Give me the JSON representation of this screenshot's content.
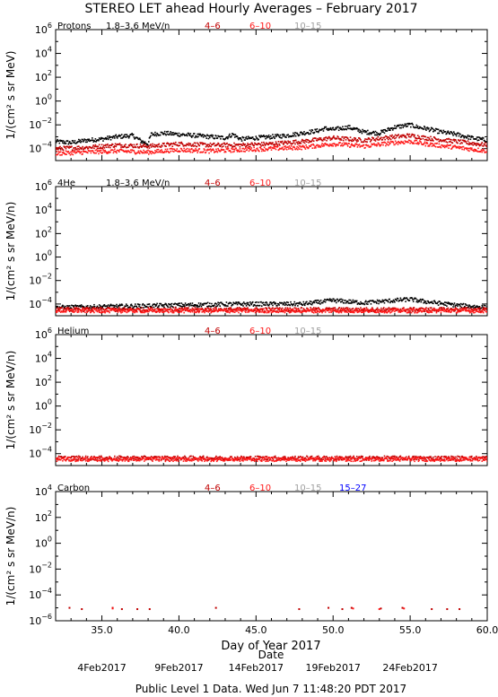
{
  "page": {
    "title": "STEREO LET ahead Hourly Averages – February 2017",
    "footer": "Public Level 1 Data. Wed Jun  7 11:48:20 PDT 2017",
    "xlabel": "Day of Year 2017",
    "date_axis_label": "Date",
    "date_ticks": [
      {
        "label": "4Feb2017",
        "day": 35.0
      },
      {
        "label": "9Feb2017",
        "day": 40.0
      },
      {
        "label": "14Feb2017",
        "day": 45.0
      },
      {
        "label": "19Feb2017",
        "day": 50.0
      },
      {
        "label": "24Feb2017",
        "day": 55.0
      }
    ]
  },
  "colors": {
    "black": "#000000",
    "dark_red": "#c00000",
    "red": "#ff1a1a",
    "gray": "#a0a0a0",
    "blue": "#0000ff"
  },
  "chart_data": [
    {
      "type": "scatter",
      "name": "Protons",
      "energy_label": "1.8–3.6 MeV/n",
      "ylabel": "1/(cm² s sr MeV)",
      "yscale": "log",
      "xlim": [
        32.0,
        60.0
      ],
      "ylim_exp": [
        -5,
        6
      ],
      "x_ticks": [
        "35.0",
        "40.0",
        "45.0",
        "50.0",
        "55.0",
        "60.0"
      ],
      "y_tick_exponents": [
        -4,
        -2,
        0,
        2,
        4,
        6
      ],
      "grid": false,
      "legend_position": "top",
      "series": [
        {
          "name": "1.8–3.6",
          "color": "#000000",
          "points": [
            [
              32,
              -3.4
            ],
            [
              33,
              -3.5
            ],
            [
              34,
              -3.3
            ],
            [
              35,
              -3.2
            ],
            [
              36,
              -3.0
            ],
            [
              37,
              -2.9
            ],
            [
              37.6,
              -3.4
            ],
            [
              38,
              -3.6
            ],
            [
              38.2,
              -2.8
            ],
            [
              39,
              -2.7
            ],
            [
              40,
              -2.8
            ],
            [
              41,
              -2.9
            ],
            [
              42,
              -3.0
            ],
            [
              43,
              -3.1
            ],
            [
              43.5,
              -2.8
            ],
            [
              44,
              -3.2
            ],
            [
              45,
              -3.1
            ],
            [
              46,
              -3.0
            ],
            [
              47,
              -2.9
            ],
            [
              48,
              -2.7
            ],
            [
              49,
              -2.5
            ],
            [
              49.5,
              -2.3
            ],
            [
              50,
              -2.4
            ],
            [
              51,
              -2.2
            ],
            [
              52,
              -2.6
            ],
            [
              53,
              -2.7
            ],
            [
              54,
              -2.2
            ],
            [
              55,
              -2.0
            ],
            [
              55.5,
              -2.2
            ],
            [
              56,
              -2.3
            ],
            [
              57,
              -2.6
            ],
            [
              58,
              -2.8
            ],
            [
              59,
              -3.1
            ],
            [
              60,
              -3.3
            ]
          ]
        },
        {
          "name": "4–6",
          "color": "#c00000",
          "points": [
            [
              32,
              -4.0
            ],
            [
              34,
              -3.9
            ],
            [
              36,
              -3.7
            ],
            [
              38,
              -3.8
            ],
            [
              40,
              -3.6
            ],
            [
              42,
              -3.7
            ],
            [
              44,
              -3.7
            ],
            [
              46,
              -3.6
            ],
            [
              48,
              -3.4
            ],
            [
              50,
              -3.1
            ],
            [
              52,
              -3.3
            ],
            [
              54,
              -3.0
            ],
            [
              55,
              -2.9
            ],
            [
              56,
              -3.1
            ],
            [
              58,
              -3.4
            ],
            [
              60,
              -3.7
            ]
          ]
        },
        {
          "name": "6–10",
          "color": "#ff1a1a",
          "points": [
            [
              32,
              -4.4
            ],
            [
              34,
              -4.3
            ],
            [
              36,
              -4.2
            ],
            [
              38,
              -4.3
            ],
            [
              40,
              -4.1
            ],
            [
              42,
              -4.2
            ],
            [
              44,
              -4.1
            ],
            [
              46,
              -4.0
            ],
            [
              48,
              -3.9
            ],
            [
              50,
              -3.6
            ],
            [
              52,
              -3.8
            ],
            [
              54,
              -3.5
            ],
            [
              55,
              -3.4
            ],
            [
              56,
              -3.6
            ],
            [
              58,
              -3.9
            ],
            [
              60,
              -4.2
            ]
          ]
        },
        {
          "name": "10–15",
          "color": "#a0a0a0",
          "points": []
        }
      ]
    },
    {
      "type": "scatter",
      "name": "4He",
      "energy_label": "1.8–3.6 MeV/n",
      "ylabel": "1/(cm² s sr MeV/n)",
      "yscale": "log",
      "xlim": [
        32.0,
        60.0
      ],
      "ylim_exp": [
        -5,
        6
      ],
      "x_ticks": [
        "35.0",
        "40.0",
        "45.0",
        "50.0",
        "55.0",
        "60.0"
      ],
      "y_tick_exponents": [
        -4,
        -2,
        0,
        2,
        4,
        6
      ],
      "grid": false,
      "legend_position": "top",
      "series": [
        {
          "name": "1.8–3.6",
          "color": "#000000",
          "points": [
            [
              32,
              -4.3
            ],
            [
              36,
              -4.2
            ],
            [
              40,
              -4.1
            ],
            [
              44,
              -4.0
            ],
            [
              48,
              -4.0
            ],
            [
              50,
              -3.7
            ],
            [
              52,
              -3.9
            ],
            [
              54,
              -3.7
            ],
            [
              55,
              -3.6
            ],
            [
              56,
              -3.8
            ],
            [
              58,
              -4.1
            ],
            [
              60,
              -4.3
            ]
          ]
        },
        {
          "name": "4–6",
          "color": "#c00000",
          "points": [
            [
              32,
              -4.6
            ],
            [
              60,
              -4.6
            ]
          ]
        },
        {
          "name": "6–10",
          "color": "#ff1a1a",
          "points": [
            [
              32,
              -4.7
            ],
            [
              60,
              -4.7
            ]
          ]
        },
        {
          "name": "10–15",
          "color": "#a0a0a0",
          "points": []
        }
      ]
    },
    {
      "type": "scatter",
      "name": "Helium",
      "energy_label": "",
      "ylabel": "1/(cm² s sr MeV/n)",
      "yscale": "log",
      "xlim": [
        32.0,
        60.0
      ],
      "ylim_exp": [
        -5,
        6
      ],
      "x_ticks": [
        "35.0",
        "40.0",
        "45.0",
        "50.0",
        "55.0",
        "60.0"
      ],
      "y_tick_exponents": [
        -4,
        -2,
        0,
        2,
        4,
        6
      ],
      "grid": false,
      "legend_position": "top",
      "series": [
        {
          "name": "4–6",
          "color": "#c00000",
          "points": [
            [
              32,
              -4.5
            ],
            [
              60,
              -4.5
            ]
          ]
        },
        {
          "name": "6–10",
          "color": "#ff1a1a",
          "points": [
            [
              32,
              -4.6
            ],
            [
              60,
              -4.6
            ]
          ]
        },
        {
          "name": "10–15",
          "color": "#a0a0a0",
          "points": []
        }
      ]
    },
    {
      "type": "scatter",
      "name": "Carbon",
      "energy_label": "",
      "ylabel": "1/(cm² s sr MeV/n)",
      "yscale": "log",
      "xlim": [
        32.0,
        60.0
      ],
      "ylim_exp": [
        -6,
        4
      ],
      "x_ticks": [
        "35.0",
        "40.0",
        "45.0",
        "50.0",
        "55.0",
        "60.0"
      ],
      "y_tick_exponents": [
        -6,
        -4,
        -2,
        0,
        2,
        4
      ],
      "grid": false,
      "legend_position": "top",
      "series": [
        {
          "name": "4–6",
          "color": "#c00000",
          "points": [
            [
              32.9,
              -5.0
            ],
            [
              33.7,
              -5.1
            ],
            [
              35.7,
              -5.0
            ],
            [
              36.3,
              -5.1
            ],
            [
              37.3,
              -5.1
            ],
            [
              38.1,
              -5.1
            ],
            [
              42.4,
              -5.0
            ],
            [
              47.8,
              -5.1
            ],
            [
              49.7,
              -5.0
            ],
            [
              50.6,
              -5.1
            ],
            [
              51.2,
              -5.0
            ],
            [
              53.1,
              -5.05
            ],
            [
              54.5,
              -5.0
            ],
            [
              56.4,
              -5.1
            ],
            [
              57.4,
              -5.1
            ],
            [
              58.2,
              -5.1
            ]
          ]
        },
        {
          "name": "6–10",
          "color": "#ff1a1a",
          "points": [
            [
              35.7,
              -5.05
            ],
            [
              51.3,
              -5.05
            ],
            [
              53.0,
              -5.1
            ],
            [
              54.6,
              -5.05
            ]
          ]
        },
        {
          "name": "10–15",
          "color": "#a0a0a0",
          "points": []
        },
        {
          "name": "15–27",
          "color": "#0000ff",
          "points": []
        }
      ]
    }
  ]
}
